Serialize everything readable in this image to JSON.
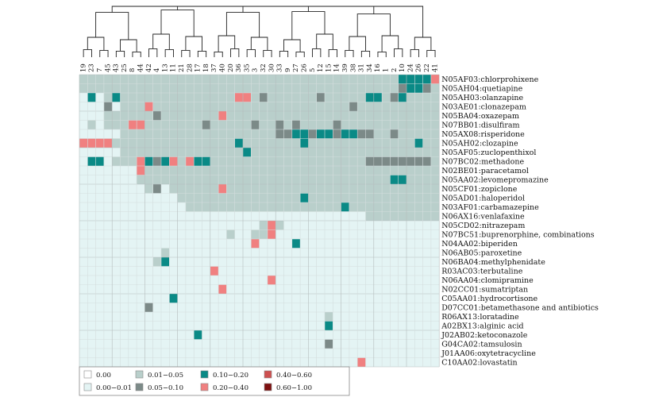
{
  "chart_data": {
    "type": "heatmap",
    "title": "",
    "columns": [
      "19",
      "23",
      "7",
      "45",
      "43",
      "25",
      "8",
      "44",
      "42",
      "4",
      "13",
      "11",
      "21",
      "28",
      "17",
      "18",
      "37",
      "40",
      "20",
      "36",
      "35",
      "3",
      "32",
      "30",
      "33",
      "9",
      "27",
      "26",
      "5",
      "12",
      "15",
      "14",
      "39",
      "38",
      "31",
      "34",
      "16",
      "1",
      "2",
      "10",
      "24",
      "26",
      "22",
      "41"
    ],
    "rows": [
      "N05AF03:chlorprohixene",
      "N05AH04:quetiapine",
      "N05AH03:olanzapine",
      "N03AE01:clonazepam",
      "N05BA04:oxazepam",
      "N07BB01:disulfiram",
      "N05AX08:risperidone",
      "N05AH02:clozapine",
      "N05AF05:zuclopenthixol",
      "N07BC02:methadone",
      "N02BE01:paracetamol",
      "N05AA02:levomepromazine",
      "N05CF01:zopiclone",
      "N05AD01:haloperidol",
      "N03AF01:carbamazepine",
      "N06AX16:venlafaxine",
      "N05CD02:nitrazepam",
      "N07BC51:buprenorphine, combinations",
      "N04AA02:biperiden",
      "N06AB05:paroxetine",
      "N06BA04:methylphenidate",
      "R03AC03:terbutaline",
      "N06AA04:clomipramine",
      "N02CC01:sumatriptan",
      "C05AA01:hydrocortisone",
      "D07CC01:betamethasone and antibiotics",
      "R06AX13:loratadine",
      "A02BX13:alginic acid",
      "J02AB02:ketoconazole",
      "G04CA02:tamsulosin",
      "J01AA06:oxytetracycline",
      "C10AA02:lovastatin"
    ],
    "legend": [
      {
        "label": "0.00",
        "color": "#ffffff"
      },
      {
        "label": "0.00−0.01",
        "color": "#e4f4f4"
      },
      {
        "label": "0.01−0.05",
        "color": "#b9cfcb"
      },
      {
        "label": "0.05−0.10",
        "color": "#7c8a88"
      },
      {
        "label": "0.10−0.20",
        "color": "#0a8a86"
      },
      {
        "label": "0.20−0.40",
        "color": "#f08080"
      },
      {
        "label": "0.40−0.60",
        "color": "#cd5050"
      },
      {
        "label": "0.60−1.00",
        "color": "#7d1010"
      }
    ],
    "cells": [
      [
        2,
        2,
        2,
        2,
        2,
        2,
        2,
        2,
        2,
        2,
        2,
        2,
        2,
        2,
        2,
        2,
        2,
        2,
        2,
        2,
        2,
        2,
        2,
        2,
        2,
        2,
        2,
        2,
        2,
        2,
        2,
        2,
        2,
        2,
        2,
        2,
        2,
        2,
        2,
        4,
        4,
        4,
        4,
        5
      ],
      [
        2,
        2,
        2,
        2,
        2,
        2,
        2,
        2,
        2,
        2,
        2,
        2,
        2,
        2,
        2,
        2,
        2,
        2,
        2,
        2,
        2,
        2,
        2,
        2,
        2,
        2,
        2,
        2,
        2,
        2,
        2,
        2,
        2,
        2,
        2,
        2,
        2,
        2,
        2,
        3,
        4,
        4,
        3,
        2
      ],
      [
        1,
        4,
        1,
        2,
        4,
        2,
        2,
        2,
        2,
        2,
        2,
        2,
        2,
        2,
        2,
        2,
        2,
        2,
        2,
        5,
        5,
        2,
        3,
        2,
        2,
        2,
        2,
        2,
        2,
        3,
        2,
        2,
        2,
        2,
        2,
        4,
        4,
        2,
        3,
        4,
        2,
        2,
        2,
        2
      ],
      [
        1,
        1,
        1,
        3,
        1,
        2,
        2,
        2,
        5,
        2,
        2,
        2,
        2,
        2,
        2,
        2,
        2,
        2,
        2,
        2,
        2,
        2,
        2,
        2,
        2,
        2,
        2,
        2,
        2,
        2,
        2,
        2,
        2,
        3,
        2,
        2,
        2,
        2,
        2,
        2,
        2,
        2,
        2,
        2
      ],
      [
        1,
        1,
        1,
        2,
        2,
        2,
        2,
        2,
        2,
        3,
        2,
        2,
        2,
        2,
        2,
        2,
        2,
        5,
        2,
        2,
        2,
        2,
        2,
        2,
        2,
        2,
        2,
        2,
        2,
        2,
        2,
        2,
        2,
        2,
        2,
        2,
        2,
        2,
        2,
        2,
        2,
        2,
        2,
        2
      ],
      [
        1,
        2,
        1,
        2,
        2,
        2,
        5,
        5,
        2,
        2,
        2,
        2,
        2,
        2,
        2,
        3,
        2,
        2,
        2,
        2,
        2,
        3,
        2,
        2,
        3,
        2,
        3,
        2,
        2,
        2,
        2,
        3,
        2,
        2,
        2,
        2,
        2,
        2,
        2,
        2,
        2,
        2,
        2,
        2
      ],
      [
        1,
        1,
        1,
        1,
        1,
        2,
        2,
        2,
        2,
        2,
        2,
        2,
        2,
        2,
        2,
        2,
        2,
        2,
        2,
        2,
        2,
        2,
        2,
        2,
        3,
        3,
        4,
        4,
        3,
        4,
        4,
        3,
        4,
        4,
        3,
        3,
        2,
        2,
        3,
        2,
        2,
        2,
        2,
        2
      ],
      [
        5,
        5,
        5,
        5,
        2,
        2,
        2,
        2,
        2,
        2,
        2,
        2,
        2,
        2,
        2,
        2,
        2,
        2,
        2,
        4,
        2,
        2,
        2,
        2,
        2,
        2,
        2,
        4,
        2,
        2,
        2,
        2,
        2,
        2,
        2,
        2,
        2,
        2,
        2,
        2,
        2,
        4,
        2,
        2
      ],
      [
        1,
        1,
        1,
        1,
        1,
        2,
        2,
        2,
        2,
        2,
        2,
        2,
        2,
        2,
        2,
        2,
        2,
        2,
        2,
        2,
        4,
        2,
        2,
        2,
        2,
        2,
        2,
        2,
        2,
        2,
        2,
        2,
        2,
        2,
        2,
        2,
        2,
        2,
        2,
        2,
        2,
        2,
        2,
        2
      ],
      [
        1,
        4,
        4,
        1,
        2,
        2,
        2,
        5,
        4,
        3,
        4,
        5,
        2,
        5,
        4,
        4,
        2,
        2,
        2,
        2,
        2,
        2,
        2,
        2,
        2,
        2,
        2,
        2,
        2,
        2,
        2,
        2,
        2,
        2,
        2,
        3,
        3,
        3,
        3,
        3,
        3,
        3,
        3,
        2
      ],
      [
        1,
        1,
        1,
        1,
        1,
        1,
        1,
        5,
        2,
        2,
        2,
        2,
        2,
        2,
        2,
        2,
        2,
        2,
        2,
        2,
        2,
        2,
        2,
        2,
        2,
        2,
        2,
        2,
        2,
        2,
        2,
        2,
        2,
        2,
        2,
        2,
        2,
        2,
        2,
        2,
        2,
        2,
        2,
        2
      ],
      [
        1,
        1,
        1,
        1,
        1,
        1,
        1,
        2,
        2,
        2,
        2,
        2,
        2,
        2,
        2,
        2,
        2,
        2,
        2,
        2,
        2,
        2,
        2,
        2,
        2,
        2,
        2,
        2,
        2,
        2,
        2,
        2,
        2,
        2,
        2,
        2,
        2,
        2,
        4,
        4,
        2,
        2,
        2,
        2
      ],
      [
        1,
        1,
        1,
        1,
        1,
        1,
        1,
        1,
        2,
        3,
        1,
        2,
        2,
        2,
        2,
        2,
        2,
        5,
        2,
        2,
        2,
        2,
        2,
        2,
        2,
        2,
        2,
        2,
        2,
        2,
        2,
        2,
        2,
        2,
        2,
        2,
        2,
        2,
        2,
        2,
        2,
        2,
        2,
        2
      ],
      [
        1,
        1,
        1,
        1,
        1,
        1,
        1,
        1,
        1,
        1,
        1,
        1,
        2,
        2,
        2,
        2,
        2,
        2,
        2,
        2,
        2,
        2,
        2,
        2,
        2,
        2,
        2,
        4,
        2,
        2,
        2,
        2,
        2,
        2,
        2,
        2,
        2,
        2,
        2,
        2,
        2,
        2,
        2,
        2
      ],
      [
        1,
        1,
        1,
        1,
        1,
        1,
        1,
        1,
        1,
        1,
        1,
        1,
        1,
        2,
        2,
        2,
        2,
        2,
        2,
        2,
        2,
        2,
        2,
        2,
        2,
        2,
        2,
        2,
        2,
        2,
        2,
        2,
        4,
        2,
        2,
        2,
        2,
        2,
        2,
        2,
        2,
        2,
        2,
        2
      ],
      [
        1,
        1,
        1,
        1,
        1,
        1,
        1,
        1,
        1,
        1,
        1,
        1,
        1,
        1,
        1,
        1,
        1,
        1,
        1,
        1,
        1,
        1,
        1,
        1,
        1,
        1,
        1,
        1,
        1,
        1,
        1,
        1,
        1,
        1,
        1,
        2,
        2,
        2,
        2,
        2,
        2,
        2,
        2,
        2
      ],
      [
        1,
        1,
        1,
        1,
        1,
        1,
        1,
        1,
        1,
        1,
        1,
        1,
        1,
        1,
        1,
        1,
        1,
        1,
        1,
        1,
        1,
        1,
        2,
        5,
        2,
        1,
        1,
        1,
        1,
        1,
        1,
        1,
        1,
        1,
        1,
        1,
        1,
        1,
        1,
        1,
        1,
        1,
        1,
        1
      ],
      [
        1,
        1,
        1,
        1,
        1,
        1,
        1,
        1,
        1,
        1,
        1,
        1,
        1,
        1,
        1,
        1,
        1,
        1,
        2,
        1,
        1,
        2,
        2,
        5,
        1,
        1,
        1,
        1,
        1,
        1,
        1,
        1,
        1,
        1,
        1,
        1,
        1,
        1,
        1,
        1,
        1,
        1,
        1,
        1
      ],
      [
        1,
        1,
        1,
        1,
        1,
        1,
        1,
        1,
        1,
        1,
        1,
        1,
        1,
        1,
        1,
        1,
        1,
        1,
        1,
        1,
        1,
        5,
        1,
        1,
        1,
        1,
        4,
        1,
        1,
        1,
        1,
        1,
        1,
        1,
        1,
        1,
        1,
        1,
        1,
        1,
        1,
        1,
        1,
        1
      ],
      [
        1,
        1,
        1,
        1,
        1,
        1,
        1,
        1,
        1,
        1,
        2,
        1,
        1,
        1,
        1,
        1,
        1,
        1,
        1,
        1,
        1,
        1,
        1,
        1,
        1,
        1,
        1,
        1,
        1,
        1,
        1,
        1,
        1,
        1,
        1,
        1,
        1,
        1,
        1,
        1,
        1,
        1,
        1,
        1
      ],
      [
        1,
        1,
        1,
        1,
        1,
        1,
        1,
        1,
        1,
        2,
        4,
        1,
        1,
        1,
        1,
        1,
        1,
        1,
        1,
        1,
        1,
        1,
        1,
        1,
        1,
        1,
        1,
        1,
        1,
        1,
        1,
        1,
        1,
        1,
        1,
        1,
        1,
        1,
        1,
        1,
        1,
        1,
        1,
        1
      ],
      [
        1,
        1,
        1,
        1,
        1,
        1,
        1,
        1,
        1,
        1,
        1,
        1,
        1,
        1,
        1,
        1,
        5,
        1,
        1,
        1,
        1,
        1,
        1,
        1,
        1,
        1,
        1,
        1,
        1,
        1,
        1,
        1,
        1,
        1,
        1,
        1,
        1,
        1,
        1,
        1,
        1,
        1,
        1,
        1
      ],
      [
        1,
        1,
        1,
        1,
        1,
        1,
        1,
        1,
        1,
        1,
        1,
        1,
        1,
        1,
        1,
        1,
        1,
        1,
        1,
        1,
        1,
        1,
        1,
        5,
        1,
        1,
        1,
        1,
        1,
        1,
        1,
        1,
        1,
        1,
        1,
        1,
        1,
        1,
        1,
        1,
        1,
        1,
        1,
        1
      ],
      [
        1,
        1,
        1,
        1,
        1,
        1,
        1,
        1,
        1,
        1,
        1,
        1,
        1,
        1,
        1,
        1,
        1,
        5,
        1,
        1,
        1,
        1,
        1,
        1,
        1,
        1,
        1,
        1,
        1,
        1,
        1,
        1,
        1,
        1,
        1,
        1,
        1,
        1,
        1,
        1,
        1,
        1,
        1,
        1
      ],
      [
        1,
        1,
        1,
        1,
        1,
        1,
        1,
        1,
        1,
        1,
        1,
        4,
        1,
        1,
        1,
        1,
        1,
        1,
        1,
        1,
        1,
        1,
        1,
        1,
        1,
        1,
        1,
        1,
        1,
        1,
        1,
        1,
        1,
        1,
        1,
        1,
        1,
        1,
        1,
        1,
        1,
        1,
        1,
        1
      ],
      [
        1,
        1,
        1,
        1,
        1,
        1,
        1,
        1,
        3,
        1,
        1,
        1,
        1,
        1,
        1,
        1,
        1,
        1,
        1,
        1,
        1,
        1,
        1,
        1,
        1,
        1,
        1,
        1,
        1,
        1,
        1,
        1,
        1,
        1,
        1,
        1,
        1,
        1,
        1,
        1,
        1,
        1,
        1,
        1
      ],
      [
        1,
        1,
        1,
        1,
        1,
        1,
        1,
        1,
        1,
        1,
        1,
        1,
        1,
        1,
        1,
        1,
        1,
        1,
        1,
        1,
        1,
        1,
        1,
        1,
        1,
        1,
        1,
        1,
        1,
        1,
        2,
        1,
        1,
        1,
        1,
        1,
        1,
        1,
        1,
        1,
        1,
        1,
        1,
        1
      ],
      [
        1,
        1,
        1,
        1,
        1,
        1,
        1,
        1,
        1,
        1,
        1,
        1,
        1,
        1,
        1,
        1,
        1,
        1,
        1,
        1,
        1,
        1,
        1,
        1,
        1,
        1,
        1,
        1,
        1,
        1,
        4,
        1,
        1,
        1,
        1,
        1,
        1,
        1,
        1,
        1,
        1,
        1,
        1,
        1
      ],
      [
        1,
        1,
        1,
        1,
        1,
        1,
        1,
        1,
        1,
        1,
        1,
        1,
        1,
        1,
        4,
        1,
        1,
        1,
        1,
        1,
        1,
        1,
        1,
        1,
        1,
        1,
        1,
        1,
        1,
        1,
        1,
        1,
        1,
        1,
        1,
        1,
        1,
        1,
        1,
        1,
        1,
        1,
        1,
        1
      ],
      [
        1,
        1,
        1,
        1,
        1,
        1,
        1,
        1,
        1,
        1,
        1,
        1,
        1,
        1,
        1,
        1,
        1,
        1,
        1,
        1,
        1,
        1,
        1,
        1,
        1,
        1,
        1,
        1,
        1,
        1,
        3,
        1,
        1,
        1,
        1,
        1,
        1,
        1,
        1,
        1,
        1,
        1,
        1,
        1
      ],
      [
        1,
        1,
        1,
        1,
        1,
        1,
        1,
        1,
        1,
        1,
        1,
        1,
        1,
        1,
        1,
        1,
        1,
        1,
        1,
        1,
        1,
        1,
        1,
        1,
        1,
        1,
        1,
        1,
        1,
        1,
        1,
        1,
        1,
        1,
        1,
        1,
        1,
        1,
        1,
        1,
        1,
        1,
        1,
        1
      ],
      [
        1,
        1,
        1,
        1,
        1,
        1,
        1,
        1,
        1,
        1,
        1,
        1,
        1,
        1,
        1,
        1,
        1,
        1,
        1,
        1,
        1,
        1,
        1,
        1,
        1,
        1,
        1,
        1,
        1,
        1,
        1,
        1,
        1,
        1,
        5,
        1,
        1,
        1,
        1,
        1,
        1,
        1,
        1,
        1
      ]
    ],
    "legend_placement": "bottom-left",
    "grid": true
  }
}
